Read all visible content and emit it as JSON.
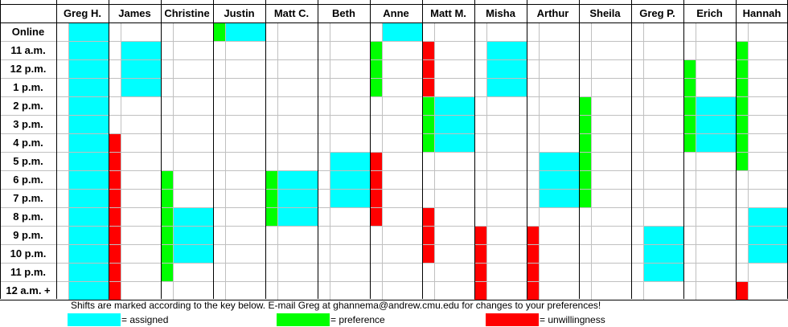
{
  "colors": {
    "assigned": "#00ffff",
    "preference": "#00ff00",
    "unwillingness": "#ff0000"
  },
  "schedule": {
    "time_slots": [
      "Online",
      "11 a.m.",
      "12 p.m.",
      "1 p.m.",
      "2 p.m.",
      "3 p.m.",
      "4 p.m.",
      "5 p.m.",
      "6 p.m.",
      "7 p.m.",
      "8 p.m.",
      "9 p.m.",
      "10 p.m.",
      "11 p.m.",
      "12 a.m. +"
    ],
    "people": [
      {
        "name": "Greg H.",
        "marks": [
          "",
          "",
          "",
          "",
          "",
          "",
          "",
          "",
          "",
          "",
          "",
          "",
          "",
          "",
          ""
        ],
        "assigned": [
          "Online",
          "11 a.m.",
          "12 p.m.",
          "1 p.m.",
          "2 p.m.",
          "3 p.m.",
          "4 p.m.",
          "5 p.m.",
          "6 p.m.",
          "7 p.m.",
          "8 p.m.",
          "9 p.m.",
          "10 p.m.",
          "11 p.m.",
          "12 a.m. +"
        ]
      },
      {
        "name": "James",
        "marks": [
          "",
          "",
          "",
          "",
          "",
          "",
          "U",
          "U",
          "U",
          "U",
          "U",
          "U",
          "U",
          "U",
          "U"
        ],
        "assigned": [
          "11 a.m.",
          "12 p.m.",
          "1 p.m."
        ]
      },
      {
        "name": "Christine",
        "marks": [
          "",
          "",
          "",
          "",
          "",
          "",
          "",
          "",
          "P",
          "P",
          "P",
          "P",
          "P",
          "P",
          ""
        ],
        "assigned": [
          "8 p.m.",
          "9 p.m.",
          "10 p.m."
        ]
      },
      {
        "name": "Justin",
        "marks": [
          "P",
          "",
          "",
          "",
          "",
          "",
          "",
          "",
          "",
          "",
          "",
          "",
          "",
          "",
          ""
        ],
        "assigned": [
          "Online"
        ]
      },
      {
        "name": "Matt C.",
        "marks": [
          "",
          "",
          "",
          "",
          "",
          "",
          "",
          "",
          "P",
          "P",
          "P",
          "",
          "",
          "",
          ""
        ],
        "assigned": [
          "6 p.m.",
          "7 p.m.",
          "8 p.m."
        ]
      },
      {
        "name": "Beth",
        "marks": [
          "",
          "",
          "",
          "",
          "",
          "",
          "",
          "",
          "",
          "",
          "",
          "",
          "",
          "",
          ""
        ],
        "assigned": [
          "5 p.m.",
          "6 p.m.",
          "7 p.m."
        ]
      },
      {
        "name": "Anne",
        "marks": [
          "",
          "P",
          "P",
          "P",
          "",
          "",
          "",
          "U",
          "U",
          "U",
          "U",
          "",
          "",
          "",
          ""
        ],
        "assigned": [
          "Online"
        ]
      },
      {
        "name": "Matt M.",
        "marks": [
          "",
          "U",
          "U",
          "U",
          "P",
          "P",
          "P",
          "",
          "",
          "",
          "U",
          "U",
          "U",
          "",
          ""
        ],
        "assigned": [
          "2 p.m.",
          "3 p.m.",
          "4 p.m."
        ]
      },
      {
        "name": "Misha",
        "marks": [
          "",
          "",
          "",
          "",
          "",
          "",
          "",
          "",
          "",
          "",
          "",
          "U",
          "U",
          "U",
          "U"
        ],
        "assigned": [
          "11 a.m.",
          "12 p.m.",
          "1 p.m."
        ]
      },
      {
        "name": "Arthur",
        "marks": [
          "",
          "",
          "",
          "",
          "",
          "",
          "",
          "",
          "",
          "",
          "",
          "U",
          "U",
          "U",
          "U"
        ],
        "assigned": [
          "5 p.m.",
          "6 p.m.",
          "7 p.m."
        ]
      },
      {
        "name": "Sheila",
        "marks": [
          "",
          "",
          "",
          "",
          "P",
          "P",
          "P",
          "P",
          "P",
          "P",
          "",
          "",
          "",
          "",
          ""
        ],
        "assigned": []
      },
      {
        "name": "Greg P.",
        "marks": [
          "",
          "",
          "",
          "",
          "",
          "",
          "",
          "",
          "",
          "",
          "",
          "",
          "",
          "",
          ""
        ],
        "assigned": [
          "9 p.m.",
          "10 p.m.",
          "11 p.m."
        ]
      },
      {
        "name": "Erich",
        "marks": [
          "",
          "",
          "P",
          "P",
          "P",
          "P",
          "P",
          "",
          "",
          "",
          "",
          "",
          "",
          "",
          ""
        ],
        "assigned": [
          "2 p.m.",
          "3 p.m.",
          "4 p.m."
        ]
      },
      {
        "name": "Hannah",
        "marks": [
          "",
          "P",
          "P",
          "P",
          "P",
          "P",
          "P",
          "P",
          "",
          "",
          "",
          "",
          "",
          "",
          "U"
        ],
        "assigned": [
          "8 p.m.",
          "9 p.m.",
          "10 p.m."
        ]
      }
    ]
  },
  "notice": "Shifts are marked according to the key below.  E-mail Greg at ghannema@andrew.cmu.edu for changes to your preferences!",
  "key": {
    "assigned_label": "= assigned",
    "preference_label": "= preference",
    "unwillingness_label": "= unwillingness"
  }
}
